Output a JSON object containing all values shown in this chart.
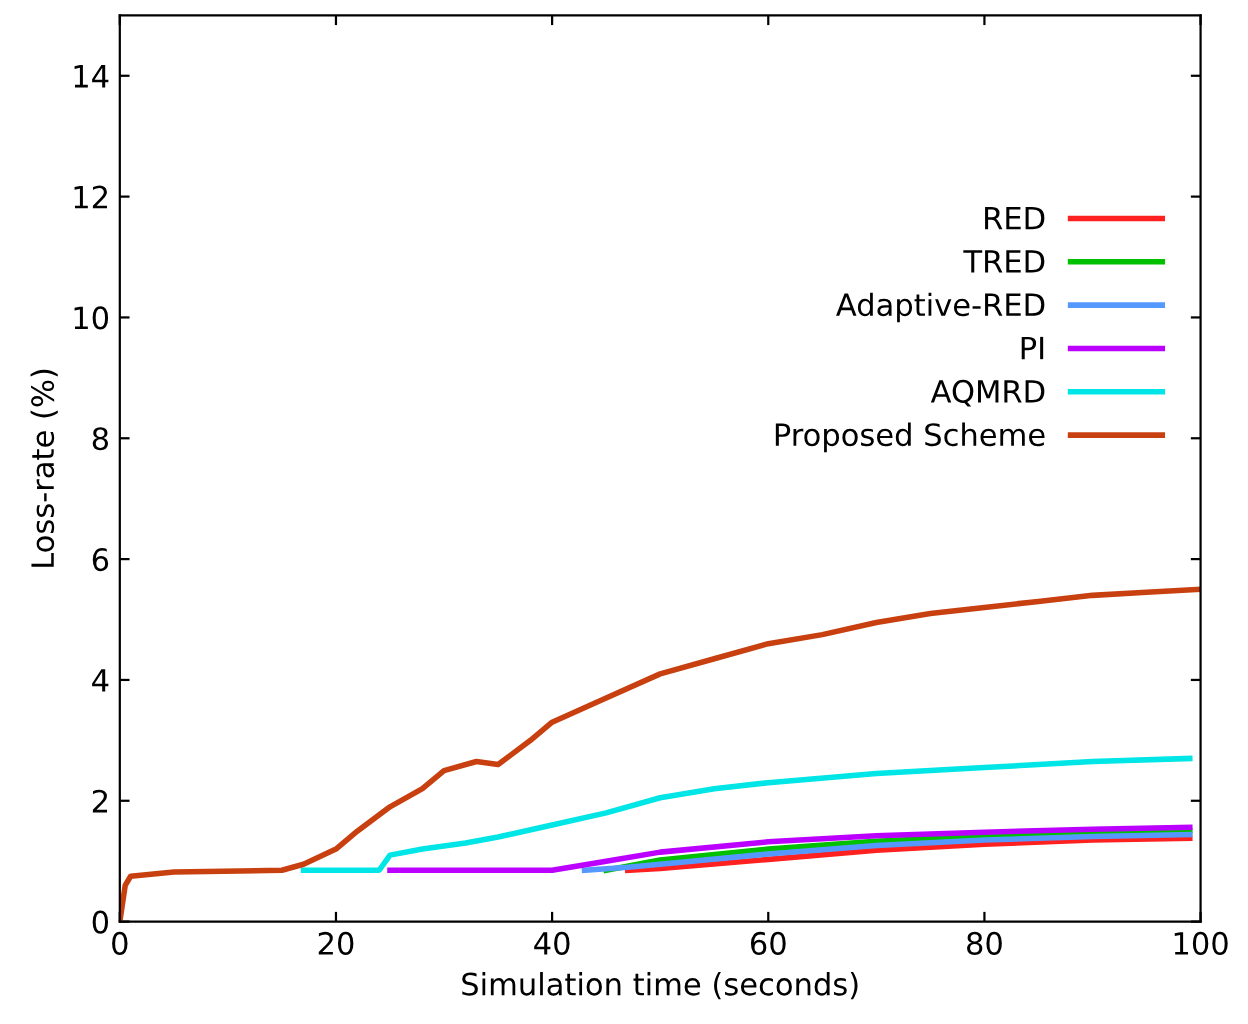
{
  "chart_data": {
    "type": "line",
    "xlabel": "Simulation time (seconds)",
    "ylabel": "Loss-rate (%)",
    "xlim": [
      0,
      100
    ],
    "ylim": [
      0,
      15
    ],
    "xticks": [
      0,
      20,
      40,
      60,
      80,
      100
    ],
    "yticks": [
      0,
      2,
      4,
      6,
      8,
      10,
      12,
      14
    ],
    "grid": false,
    "legend": "top right",
    "marker": "none",
    "line_style": "solid",
    "series": [
      {
        "name": "RED",
        "color": "#ff2020",
        "x": [
          47,
          50,
          60,
          70,
          80,
          90,
          99
        ],
        "values": [
          0.85,
          0.88,
          1.03,
          1.18,
          1.28,
          1.35,
          1.38
        ]
      },
      {
        "name": "TRED",
        "color": "#00c000",
        "x": [
          45,
          50,
          60,
          70,
          80,
          90,
          99
        ],
        "values": [
          0.85,
          1.02,
          1.2,
          1.33,
          1.42,
          1.47,
          1.5
        ]
      },
      {
        "name": "Adaptive-RED",
        "color": "#5599ff",
        "x": [
          43,
          47,
          50,
          60,
          70,
          80,
          90,
          99
        ],
        "values": [
          0.85,
          0.9,
          0.95,
          1.12,
          1.26,
          1.35,
          1.41,
          1.44
        ]
      },
      {
        "name": "PI",
        "color": "#bb00ff",
        "x": [
          25,
          40,
          45,
          50,
          60,
          70,
          80,
          90,
          99
        ],
        "values": [
          0.85,
          0.85,
          1.0,
          1.15,
          1.32,
          1.42,
          1.48,
          1.53,
          1.56
        ]
      },
      {
        "name": "AQMRD",
        "color": "#00e5e5",
        "x": [
          17,
          24,
          25,
          28,
          32,
          35,
          40,
          45,
          50,
          55,
          60,
          70,
          80,
          90,
          99
        ],
        "values": [
          0.85,
          0.85,
          1.1,
          1.2,
          1.3,
          1.4,
          1.6,
          1.8,
          2.05,
          2.2,
          2.3,
          2.45,
          2.55,
          2.65,
          2.7
        ]
      },
      {
        "name": "Proposed Scheme",
        "color": "#c84010",
        "x": [
          0,
          0.5,
          1,
          5,
          15,
          17,
          20,
          22,
          25,
          28,
          30,
          33,
          35,
          38,
          40,
          45,
          50,
          55,
          60,
          65,
          70,
          75,
          80,
          85,
          90,
          95,
          100
        ],
        "values": [
          0,
          0.6,
          0.75,
          0.82,
          0.85,
          0.95,
          1.2,
          1.5,
          1.9,
          2.2,
          2.5,
          2.65,
          2.6,
          3.0,
          3.3,
          3.7,
          4.1,
          4.35,
          4.6,
          4.75,
          4.95,
          5.1,
          5.2,
          5.3,
          5.4,
          5.45,
          5.5
        ]
      }
    ]
  }
}
